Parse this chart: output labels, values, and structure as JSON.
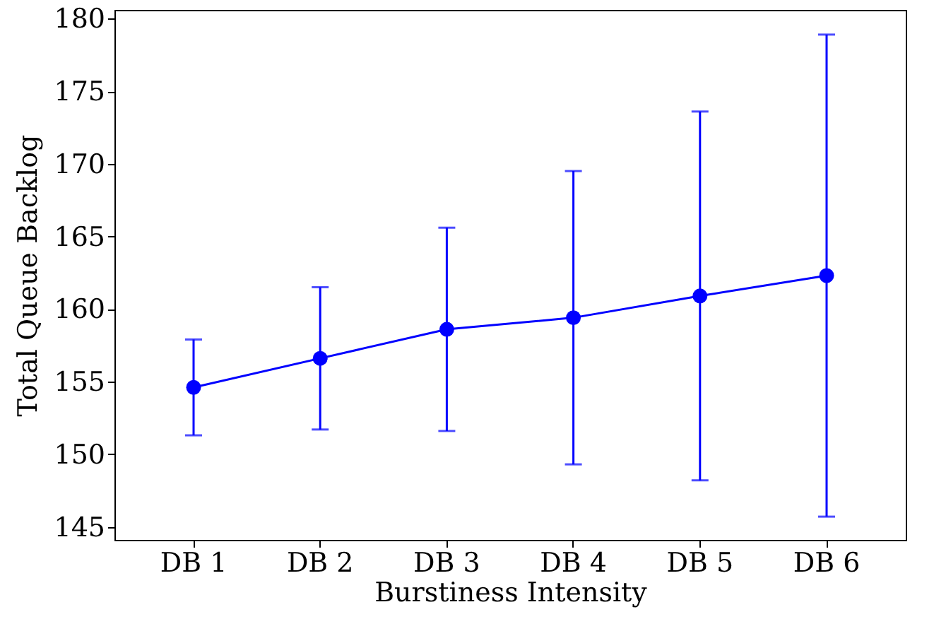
{
  "chart_data": {
    "type": "line",
    "xlabel": "Burstiness Intensity",
    "ylabel": "Total Queue Backlog",
    "categories": [
      "DB 1",
      "DB 2",
      "DB 3",
      "DB 4",
      "DB 5",
      "DB 6"
    ],
    "series": [
      {
        "color": "#0000ff",
        "values": [
          154.6,
          156.6,
          158.6,
          159.4,
          160.9,
          162.3
        ],
        "errors": [
          3.3,
          4.9,
          7.0,
          10.1,
          12.7,
          16.6
        ]
      }
    ],
    "ylim": [
      144.1,
      180.6
    ],
    "yticks": [
      145,
      150,
      155,
      160,
      165,
      170,
      175,
      180
    ],
    "marker": "circle",
    "line_style": "solid"
  }
}
